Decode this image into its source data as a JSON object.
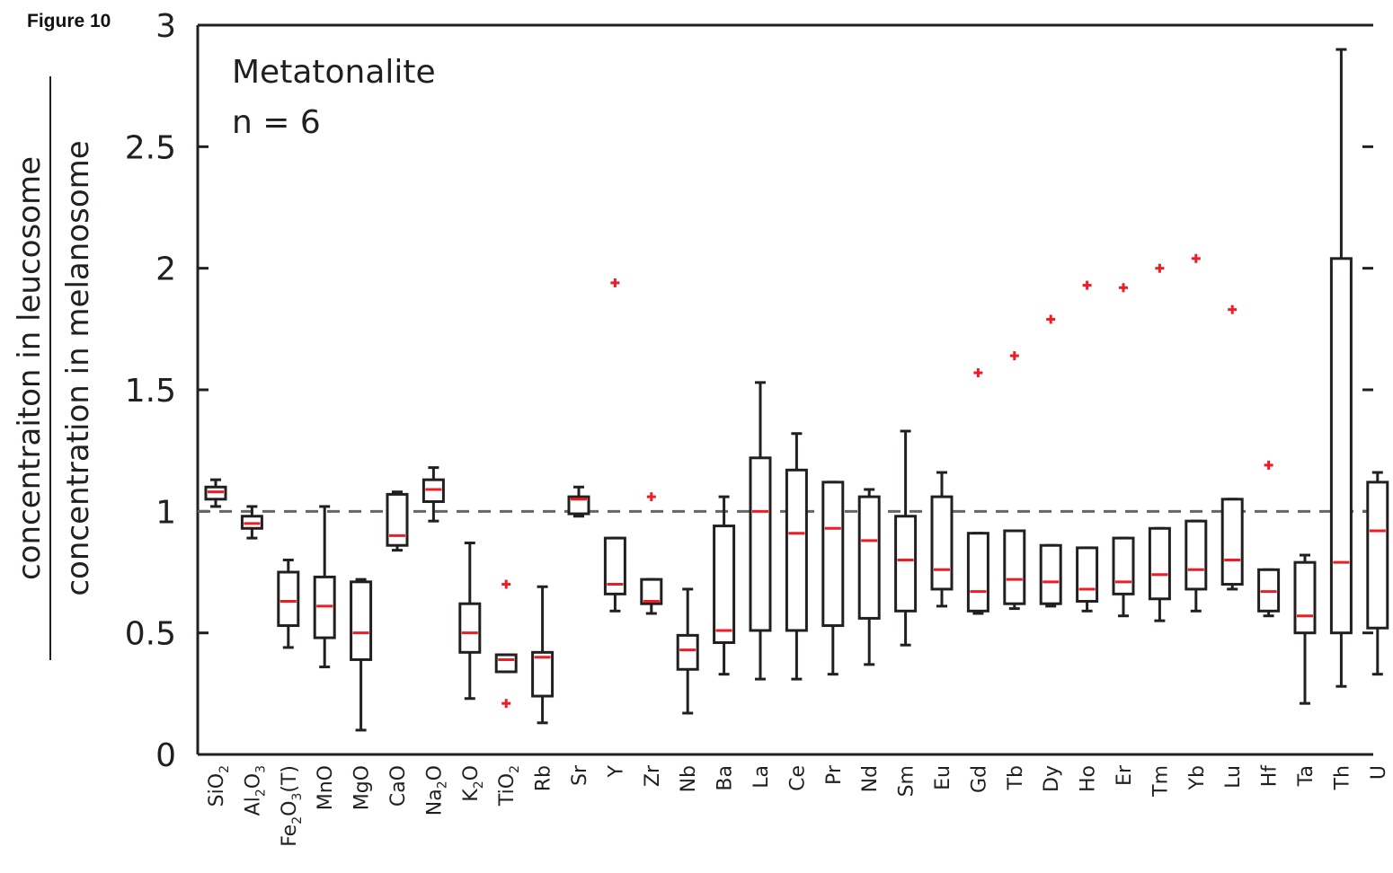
{
  "figure_label": "Figure 10",
  "chart_data": {
    "type": "box",
    "annotations": [
      "Metatonalite",
      "n = 6"
    ],
    "ylabel_numerator": "concentraiton in leucosome",
    "ylabel_denominator": "concentration in melanosome",
    "ylim": [
      0,
      3
    ],
    "yticks": [
      "0",
      "0.5",
      "1",
      "1.5",
      "2",
      "2.5",
      "3"
    ],
    "reference_line": 1,
    "colors": {
      "box": "#231f20",
      "median": "#ee1c25",
      "outlier": "#ee1c25",
      "reference": "#666666"
    },
    "categories": [
      {
        "base": "SiO",
        "sub": "2",
        "rest": ""
      },
      {
        "base": "Al",
        "sub": "2",
        "mid": "O",
        "sub2": "3",
        "rest": ""
      },
      {
        "base": "Fe",
        "sub": "2",
        "mid": "O",
        "sub2": "3",
        "rest": "(T)"
      },
      {
        "base": "MnO"
      },
      {
        "base": "MgO"
      },
      {
        "base": "CaO"
      },
      {
        "base": "Na",
        "sub": "2",
        "rest": "O"
      },
      {
        "base": "K",
        "sub": "2",
        "rest": "O"
      },
      {
        "base": "TiO",
        "sub": "2",
        "rest": ""
      },
      {
        "base": "Rb"
      },
      {
        "base": "Sr"
      },
      {
        "base": "Y"
      },
      {
        "base": "Zr"
      },
      {
        "base": "Nb"
      },
      {
        "base": "Ba"
      },
      {
        "base": "La"
      },
      {
        "base": "Ce"
      },
      {
        "base": "Pr"
      },
      {
        "base": "Nd"
      },
      {
        "base": "Sm"
      },
      {
        "base": "Eu"
      },
      {
        "base": "Gd"
      },
      {
        "base": "Tb"
      },
      {
        "base": "Dy"
      },
      {
        "base": "Ho"
      },
      {
        "base": "Er"
      },
      {
        "base": "Tm"
      },
      {
        "base": "Yb"
      },
      {
        "base": "Lu"
      },
      {
        "base": "Hf"
      },
      {
        "base": "Ta"
      },
      {
        "base": "Th"
      },
      {
        "base": "U"
      }
    ],
    "boxes": [
      {
        "min": 1.02,
        "q1": 1.05,
        "median": 1.08,
        "q3": 1.1,
        "max": 1.13,
        "outliers": []
      },
      {
        "min": 0.89,
        "q1": 0.93,
        "median": 0.95,
        "q3": 0.98,
        "max": 1.02,
        "outliers": []
      },
      {
        "min": 0.44,
        "q1": 0.53,
        "median": 0.63,
        "q3": 0.75,
        "max": 0.8,
        "outliers": []
      },
      {
        "min": 0.36,
        "q1": 0.48,
        "median": 0.61,
        "q3": 0.73,
        "max": 1.02,
        "outliers": []
      },
      {
        "min": 0.1,
        "q1": 0.39,
        "median": 0.5,
        "q3": 0.71,
        "max": 0.72,
        "outliers": []
      },
      {
        "min": 0.84,
        "q1": 0.86,
        "median": 0.9,
        "q3": 1.07,
        "max": 1.08,
        "outliers": []
      },
      {
        "min": 0.96,
        "q1": 1.04,
        "median": 1.09,
        "q3": 1.13,
        "max": 1.18,
        "outliers": []
      },
      {
        "min": 0.23,
        "q1": 0.42,
        "median": 0.5,
        "q3": 0.62,
        "max": 0.87,
        "outliers": []
      },
      {
        "min": 0.34,
        "q1": 0.34,
        "median": 0.39,
        "q3": 0.41,
        "max": 0.41,
        "outliers": [
          0.7,
          0.21
        ]
      },
      {
        "min": 0.13,
        "q1": 0.24,
        "median": 0.4,
        "q3": 0.42,
        "max": 0.69,
        "outliers": []
      },
      {
        "min": 0.98,
        "q1": 0.99,
        "median": 1.05,
        "q3": 1.06,
        "max": 1.1,
        "outliers": []
      },
      {
        "min": 0.59,
        "q1": 0.66,
        "median": 0.7,
        "q3": 0.89,
        "max": 0.89,
        "outliers": [
          1.94
        ]
      },
      {
        "min": 0.58,
        "q1": 0.62,
        "median": 0.63,
        "q3": 0.72,
        "max": 0.72,
        "outliers": [
          1.06
        ]
      },
      {
        "min": 0.17,
        "q1": 0.35,
        "median": 0.43,
        "q3": 0.49,
        "max": 0.68,
        "outliers": []
      },
      {
        "min": 0.33,
        "q1": 0.46,
        "median": 0.51,
        "q3": 0.94,
        "max": 1.06,
        "outliers": []
      },
      {
        "min": 0.31,
        "q1": 0.51,
        "median": 1.0,
        "q3": 1.22,
        "max": 1.53,
        "outliers": []
      },
      {
        "min": 0.31,
        "q1": 0.51,
        "median": 0.91,
        "q3": 1.17,
        "max": 1.32,
        "outliers": []
      },
      {
        "min": 0.33,
        "q1": 0.53,
        "median": 0.93,
        "q3": 1.12,
        "max": 1.12,
        "outliers": []
      },
      {
        "min": 0.37,
        "q1": 0.56,
        "median": 0.88,
        "q3": 1.06,
        "max": 1.09,
        "outliers": []
      },
      {
        "min": 0.45,
        "q1": 0.59,
        "median": 0.8,
        "q3": 0.98,
        "max": 1.33,
        "outliers": []
      },
      {
        "min": 0.61,
        "q1": 0.68,
        "median": 0.76,
        "q3": 1.06,
        "max": 1.16,
        "outliers": []
      },
      {
        "min": 0.58,
        "q1": 0.59,
        "median": 0.67,
        "q3": 0.91,
        "max": 0.91,
        "outliers": [
          1.57
        ]
      },
      {
        "min": 0.6,
        "q1": 0.62,
        "median": 0.72,
        "q3": 0.92,
        "max": 0.92,
        "outliers": [
          1.64
        ]
      },
      {
        "min": 0.61,
        "q1": 0.62,
        "median": 0.71,
        "q3": 0.86,
        "max": 0.86,
        "outliers": [
          1.79
        ]
      },
      {
        "min": 0.59,
        "q1": 0.63,
        "median": 0.68,
        "q3": 0.85,
        "max": 0.85,
        "outliers": [
          1.93
        ]
      },
      {
        "min": 0.57,
        "q1": 0.66,
        "median": 0.71,
        "q3": 0.89,
        "max": 0.89,
        "outliers": [
          1.92
        ]
      },
      {
        "min": 0.55,
        "q1": 0.64,
        "median": 0.74,
        "q3": 0.93,
        "max": 0.93,
        "outliers": [
          2.0
        ]
      },
      {
        "min": 0.59,
        "q1": 0.68,
        "median": 0.76,
        "q3": 0.96,
        "max": 0.96,
        "outliers": [
          2.04
        ]
      },
      {
        "min": 0.68,
        "q1": 0.7,
        "median": 0.8,
        "q3": 1.05,
        "max": 1.05,
        "outliers": [
          1.83
        ]
      },
      {
        "min": 0.57,
        "q1": 0.59,
        "median": 0.67,
        "q3": 0.76,
        "max": 0.76,
        "outliers": [
          1.19
        ]
      },
      {
        "min": 0.21,
        "q1": 0.5,
        "median": 0.57,
        "q3": 0.79,
        "max": 0.82,
        "outliers": []
      },
      {
        "min": 0.28,
        "q1": 0.5,
        "median": 0.79,
        "q3": 2.04,
        "max": 2.9,
        "outliers": []
      },
      {
        "min": 0.33,
        "q1": 0.52,
        "median": 0.92,
        "q3": 1.12,
        "max": 1.16,
        "outliers": []
      }
    ]
  }
}
